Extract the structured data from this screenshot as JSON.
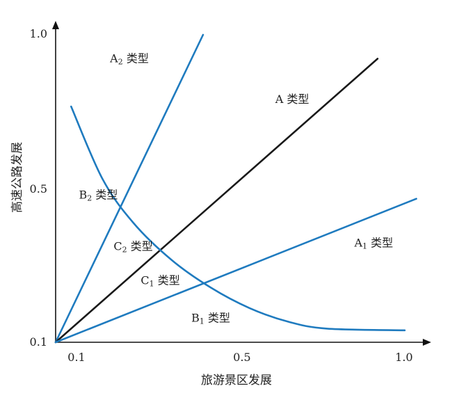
{
  "chart_data": {
    "type": "line",
    "xlabel": "旅游景区发展",
    "ylabel": "高速公路发展",
    "xlim": [
      0.1,
      1.0
    ],
    "ylim": [
      0.1,
      1.0
    ],
    "x_ticks": [
      "0.1",
      "0.5",
      "1.0"
    ],
    "y_ticks": [
      "0.1",
      "0.5",
      "1.0"
    ],
    "grid": false,
    "colors": {
      "axis": "#111111",
      "diagonal": "#1a1a1a",
      "lines": "#1f7bbf"
    },
    "lines": [
      {
        "id": "A2",
        "color": "#1f7bbf",
        "points": [
          [
            0.1,
            0.1
          ],
          [
            0.48,
            1.0
          ]
        ]
      },
      {
        "id": "A",
        "color": "#1a1a1a",
        "points": [
          [
            0.1,
            0.1
          ],
          [
            0.93,
            0.93
          ]
        ]
      },
      {
        "id": "A1",
        "color": "#1f7bbf",
        "points": [
          [
            0.1,
            0.1
          ],
          [
            1.03,
            0.52
          ]
        ]
      },
      {
        "id": "curve",
        "color": "#1f7bbf",
        "points": [
          [
            0.14,
            0.79
          ],
          [
            0.22,
            0.58
          ],
          [
            0.3,
            0.45
          ],
          [
            0.4,
            0.34
          ],
          [
            0.5,
            0.26
          ],
          [
            0.6,
            0.2
          ],
          [
            0.7,
            0.16
          ],
          [
            0.8,
            0.14
          ],
          [
            1.0,
            0.135
          ]
        ]
      }
    ],
    "regions": [
      {
        "id": "A2",
        "main": "A",
        "sub": "2",
        "suffix": "类型",
        "at": [
          0.29,
          0.92
        ]
      },
      {
        "id": "A",
        "main": "A",
        "sub": "",
        "suffix": "类型",
        "at": [
          0.71,
          0.8
        ]
      },
      {
        "id": "A1",
        "main": "A",
        "sub": "1",
        "suffix": "类型",
        "at": [
          0.92,
          0.38
        ]
      },
      {
        "id": "B2",
        "main": "B",
        "sub": "2",
        "suffix": "类型",
        "at": [
          0.21,
          0.52
        ]
      },
      {
        "id": "C2",
        "main": "C",
        "sub": "2",
        "suffix": "类型",
        "at": [
          0.3,
          0.37
        ]
      },
      {
        "id": "C1",
        "main": "C",
        "sub": "1",
        "suffix": "类型",
        "at": [
          0.37,
          0.27
        ]
      },
      {
        "id": "B1",
        "main": "B",
        "sub": "1",
        "suffix": "类型",
        "at": [
          0.5,
          0.16
        ]
      }
    ]
  }
}
